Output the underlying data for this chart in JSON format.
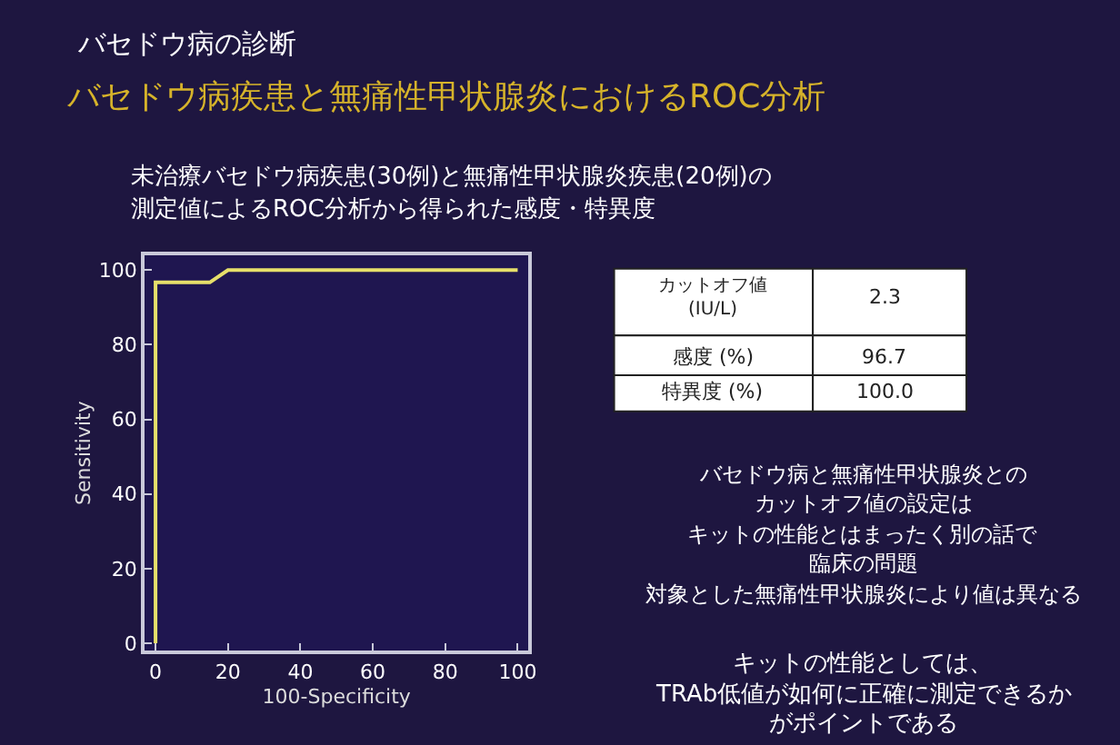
{
  "chart_data": {
    "type": "line",
    "title": "バセドウ病の診断",
    "subtitle": "バセドウ病疾患と無痛性甲状腺炎におけるROC分析",
    "xlabel": "100-Specificity",
    "ylabel": "Sensitivity",
    "x": [
      0,
      0,
      15,
      20,
      100
    ],
    "series": [
      {
        "color": "#e6df6a",
        "values": [
          0,
          96.7,
          96.7,
          100,
          100
        ]
      }
    ],
    "xlim": [
      -3,
      103
    ],
    "ylim": [
      -2,
      104
    ],
    "xticks": [
      0,
      20,
      40,
      60,
      80,
      100
    ],
    "yticks": [
      0,
      20,
      40,
      60,
      80,
      100
    ],
    "grid": false,
    "marker": "none",
    "line_style": "solid",
    "annotations": [
      "未治療バセドウ病疾患(30例)と無痛性甲状腺炎疾患(20例)の",
      "測定値によるROC分析から得られた感度・特異度",
      "カットオフ値\n(IU/L)",
      "2.3",
      "感度 (%)",
      "96.7",
      "特異度 (%)",
      "100.0",
      "バセドウ病と無痛性甲状腺炎との",
      "カットオフ値の設定は",
      "キットの性能とはまったく別の話で",
      "臨床の問題",
      "対象とした無痛性甲状腺炎により値は異なる",
      "キットの性能としては、",
      "TRAb低値が如何に正確に測定できるか",
      "がポイントである"
    ]
  }
}
